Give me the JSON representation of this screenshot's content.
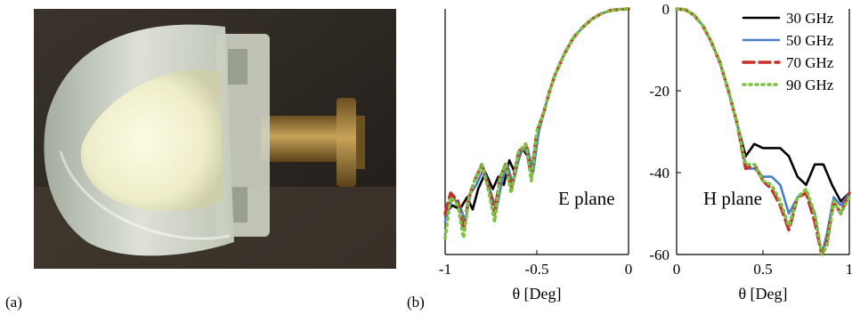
{
  "panels": {
    "a_label": "(a)",
    "b_label": "(b)"
  },
  "photo": {
    "icon": "lens-horn-antenna-photo",
    "colors": {
      "background": "#2b2620",
      "lens": "#dfe3d6",
      "core": "#f2f1cf",
      "brass": "#8c6c2e"
    }
  },
  "chart_data": [
    {
      "type": "line",
      "annotation": "E plane",
      "xlabel": "θ [Deg]",
      "ylabel": "",
      "xlim": [
        -1,
        0
      ],
      "ylim": [
        -60,
        0
      ],
      "xticks": [
        "-1",
        "-0.5",
        "0"
      ],
      "grid": false,
      "series": [
        {
          "name": "30 GHz",
          "color": "#000000",
          "dash": "solid",
          "x": [
            -1,
            -0.96,
            -0.92,
            -0.88,
            -0.85,
            -0.82,
            -0.78,
            -0.74,
            -0.71,
            -0.68,
            -0.65,
            -0.62,
            -0.58,
            -0.55,
            -0.52,
            -0.49,
            -0.46,
            -0.43,
            -0.4,
            -0.35,
            -0.3,
            -0.25,
            -0.2,
            -0.15,
            -0.1,
            -0.05,
            0
          ],
          "y": [
            -50,
            -48,
            -49,
            -46,
            -49,
            -44,
            -40,
            -44,
            -41,
            -43,
            -37,
            -40,
            -34,
            -36,
            -39,
            -30,
            -25,
            -20,
            -16,
            -11,
            -7,
            -4.5,
            -2.5,
            -1.2,
            -0.4,
            -0.1,
            0
          ]
        },
        {
          "name": "50 GHz",
          "color": "#4a7ec4",
          "dash": "solid",
          "x": [
            -1,
            -0.96,
            -0.92,
            -0.89,
            -0.86,
            -0.83,
            -0.79,
            -0.75,
            -0.72,
            -0.69,
            -0.66,
            -0.63,
            -0.59,
            -0.55,
            -0.52,
            -0.49,
            -0.46,
            -0.43,
            -0.4,
            -0.35,
            -0.3,
            -0.25,
            -0.2,
            -0.15,
            -0.1,
            -0.05,
            0
          ],
          "y": [
            -52,
            -46,
            -48,
            -52,
            -45,
            -43,
            -39,
            -45,
            -49,
            -42,
            -38,
            -43,
            -35,
            -34,
            -40,
            -30,
            -25,
            -20,
            -16,
            -11,
            -7,
            -4.5,
            -2.5,
            -1.2,
            -0.4,
            -0.1,
            0
          ]
        },
        {
          "name": "70 GHz",
          "color": "#c4302b",
          "dash": "dashed",
          "x": [
            -1,
            -0.97,
            -0.93,
            -0.9,
            -0.87,
            -0.84,
            -0.8,
            -0.76,
            -0.73,
            -0.7,
            -0.67,
            -0.64,
            -0.6,
            -0.56,
            -0.53,
            -0.5,
            -0.46,
            -0.43,
            -0.4,
            -0.35,
            -0.3,
            -0.25,
            -0.2,
            -0.15,
            -0.1,
            -0.05,
            0
          ],
          "y": [
            -50,
            -45,
            -47,
            -54,
            -46,
            -42,
            -38,
            -44,
            -50,
            -41,
            -38,
            -44,
            -35,
            -33,
            -41,
            -30,
            -25,
            -20,
            -16,
            -11,
            -7,
            -4.5,
            -2.5,
            -1.2,
            -0.4,
            -0.1,
            0
          ]
        },
        {
          "name": "90 GHz",
          "color": "#7cc242",
          "dash": "dotted",
          "x": [
            -1,
            -0.97,
            -0.93,
            -0.9,
            -0.87,
            -0.84,
            -0.8,
            -0.76,
            -0.73,
            -0.7,
            -0.67,
            -0.64,
            -0.6,
            -0.56,
            -0.53,
            -0.5,
            -0.46,
            -0.43,
            -0.4,
            -0.35,
            -0.3,
            -0.25,
            -0.2,
            -0.15,
            -0.1,
            -0.05,
            0
          ],
          "y": [
            -56,
            -46,
            -48,
            -56,
            -46,
            -42,
            -38,
            -45,
            -52,
            -41,
            -38,
            -45,
            -35,
            -33,
            -42,
            -30,
            -25,
            -20,
            -16,
            -11,
            -7,
            -4.5,
            -2.5,
            -1.2,
            -0.4,
            -0.1,
            0
          ]
        }
      ]
    },
    {
      "type": "line",
      "annotation": "H plane",
      "xlabel": "θ [Deg]",
      "ylabel": "",
      "xlim": [
        0,
        1
      ],
      "ylim": [
        -60,
        0
      ],
      "xticks": [
        "0",
        "0.5",
        "1"
      ],
      "yticks": [
        "0",
        "-20",
        "-40",
        "-60"
      ],
      "grid": false,
      "legend": "top-right",
      "series": [
        {
          "name": "30 GHz",
          "color": "#000000",
          "dash": "solid",
          "x": [
            0,
            0.05,
            0.1,
            0.15,
            0.2,
            0.25,
            0.3,
            0.35,
            0.4,
            0.45,
            0.5,
            0.55,
            0.6,
            0.65,
            0.7,
            0.75,
            0.8,
            0.85,
            0.9,
            0.95,
            1.0
          ],
          "y": [
            0,
            -0.2,
            -1.5,
            -4,
            -8,
            -13,
            -20,
            -28,
            -36,
            -33,
            -34,
            -34,
            -34,
            -36,
            -41,
            -43,
            -38,
            -38,
            -43,
            -47,
            -45
          ]
        },
        {
          "name": "50 GHz",
          "color": "#4a7ec4",
          "dash": "solid",
          "x": [
            0,
            0.05,
            0.1,
            0.15,
            0.2,
            0.25,
            0.3,
            0.35,
            0.4,
            0.45,
            0.5,
            0.55,
            0.6,
            0.65,
            0.7,
            0.75,
            0.8,
            0.84,
            0.87,
            0.91,
            0.95,
            1.0
          ],
          "y": [
            0,
            -0.2,
            -1.5,
            -4,
            -8,
            -13,
            -20,
            -28,
            -39,
            -39,
            -41,
            -41,
            -43,
            -50,
            -46,
            -45,
            -50,
            -60,
            -55,
            -46,
            -48,
            -45
          ]
        },
        {
          "name": "70 GHz",
          "color": "#c4302b",
          "dash": "dashed",
          "x": [
            0,
            0.05,
            0.1,
            0.15,
            0.2,
            0.25,
            0.3,
            0.35,
            0.4,
            0.45,
            0.5,
            0.55,
            0.6,
            0.65,
            0.7,
            0.75,
            0.8,
            0.84,
            0.87,
            0.91,
            0.95,
            1.0
          ],
          "y": [
            0,
            -0.2,
            -1.5,
            -4,
            -8,
            -13,
            -20,
            -28,
            -39,
            -38,
            -42,
            -44,
            -48,
            -54,
            -46,
            -45,
            -52,
            -60,
            -57,
            -47,
            -50,
            -45
          ]
        },
        {
          "name": "90 GHz",
          "color": "#7cc242",
          "dash": "dotted",
          "x": [
            0,
            0.05,
            0.1,
            0.15,
            0.2,
            0.25,
            0.3,
            0.35,
            0.4,
            0.45,
            0.5,
            0.55,
            0.6,
            0.65,
            0.7,
            0.75,
            0.8,
            0.84,
            0.87,
            0.91,
            0.95,
            1.0
          ],
          "y": [
            0,
            -0.2,
            -1.5,
            -4,
            -8,
            -13,
            -20,
            -28,
            -38,
            -38,
            -42,
            -43,
            -47,
            -53,
            -46,
            -44,
            -50,
            -60,
            -58,
            -47,
            -50,
            -46
          ]
        }
      ]
    }
  ]
}
